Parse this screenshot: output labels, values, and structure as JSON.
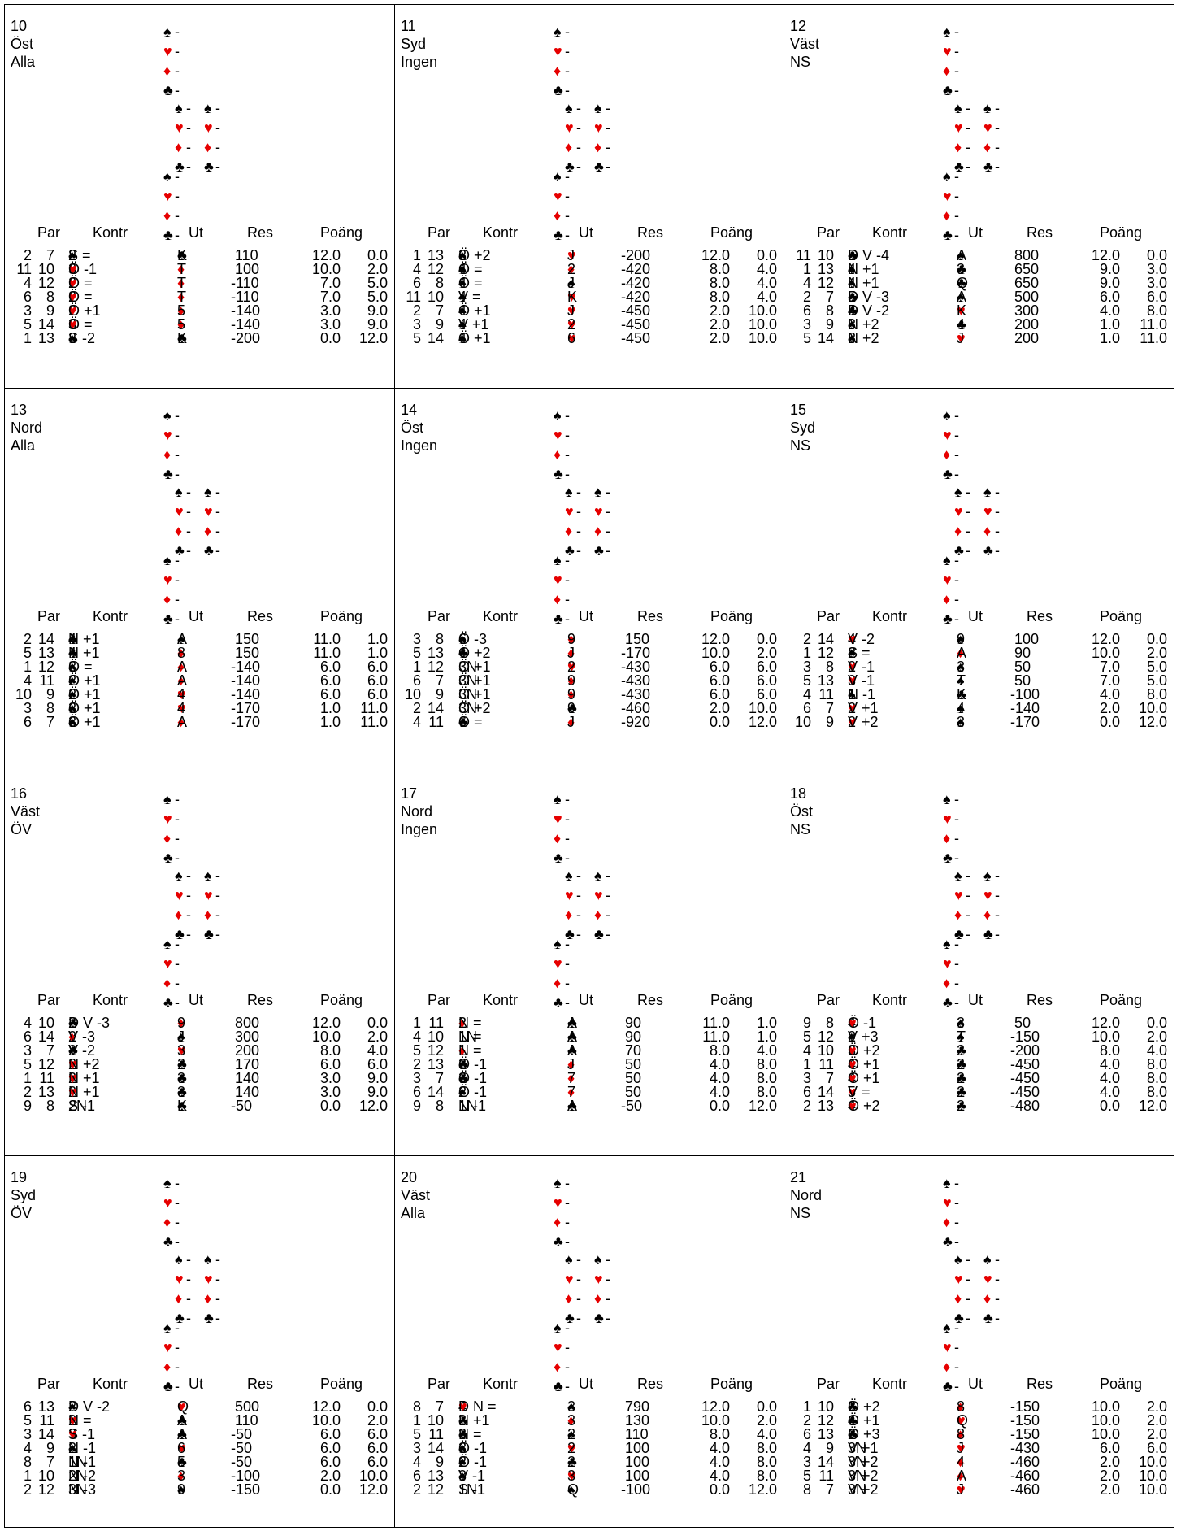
{
  "headers": {
    "par": "Par",
    "kontr": "Kontr",
    "ut": "Ut",
    "res": "Res",
    "poang": "Poäng"
  },
  "hand_values": {
    "north": [
      "-",
      "-",
      "-",
      "-"
    ],
    "west": [
      "-",
      "-",
      "-",
      "-"
    ],
    "east": [
      "-",
      "-",
      "-",
      "-"
    ],
    "south": [
      "-",
      "-",
      "-",
      "-"
    ]
  },
  "boards": [
    {
      "number": "10",
      "dealer": "Öst",
      "vuln": "Alla",
      "rows": [
        [
          "2",
          "7",
          "2",
          "♠",
          "S =",
          "♣",
          "K",
          "110",
          "12.0",
          "0.0"
        ],
        [
          "11",
          "10",
          "3",
          "♥",
          "Ö -1",
          "♦",
          "T",
          "100",
          "10.0",
          "2.0"
        ],
        [
          "4",
          "12",
          "2",
          "♥",
          "Ö =",
          "♦",
          "T",
          "-110",
          "7.0",
          "5.0"
        ],
        [
          "6",
          "8",
          "2",
          "♥",
          "Ö =",
          "♦",
          "T",
          "-110",
          "7.0",
          "5.0"
        ],
        [
          "3",
          "9",
          "2",
          "♥",
          "Ö +1",
          "♦",
          "5",
          "-140",
          "3.0",
          "9.0"
        ],
        [
          "5",
          "14",
          "3",
          "♥",
          "Ö =",
          "♦",
          "5",
          "-140",
          "3.0",
          "9.0"
        ],
        [
          "1",
          "13",
          "3",
          "♠",
          "S -2",
          "♣",
          "K",
          "-200",
          "0.0",
          "12.0"
        ]
      ]
    },
    {
      "number": "11",
      "dealer": "Syd",
      "vuln": "Ingen",
      "rows": [
        [
          "1",
          "13",
          "3",
          "♠",
          "Ö +2",
          "♥",
          "J",
          "-200",
          "12.0",
          "0.0"
        ],
        [
          "4",
          "12",
          "4",
          "♠",
          "Ö =",
          "♦",
          "2",
          "-420",
          "8.0",
          "4.0"
        ],
        [
          "6",
          "8",
          "4",
          "♠",
          "Ö =",
          "♠",
          "J",
          "-420",
          "8.0",
          "4.0"
        ],
        [
          "11",
          "10",
          "4",
          "♠",
          "V =",
          "♥",
          "K",
          "-420",
          "8.0",
          "4.0"
        ],
        [
          "2",
          "7",
          "4",
          "♠",
          "Ö +1",
          "♥",
          "J",
          "-450",
          "2.0",
          "10.0"
        ],
        [
          "3",
          "9",
          "4",
          "♠",
          "V +1",
          "♥",
          "2",
          "-450",
          "2.0",
          "10.0"
        ],
        [
          "5",
          "14",
          "4",
          "♠",
          "Ö +1",
          "♥",
          "6",
          "-450",
          "2.0",
          "10.0"
        ]
      ]
    },
    {
      "number": "12",
      "dealer": "Väst",
      "vuln": "NS",
      "rows": [
        [
          "11",
          "10",
          "5",
          "♣",
          "D V -4",
          "♠",
          "A",
          "800",
          "12.0",
          "0.0"
        ],
        [
          "1",
          "13",
          "4",
          "♠",
          "N +1",
          "♣",
          "3",
          "650",
          "9.0",
          "3.0"
        ],
        [
          "4",
          "12",
          "4",
          "♠",
          "N +1",
          "♣",
          "Q",
          "650",
          "9.0",
          "3.0"
        ],
        [
          "2",
          "7",
          "5",
          "♣",
          "D V -3",
          "♠",
          "A",
          "500",
          "6.0",
          "6.0"
        ],
        [
          "6",
          "8",
          "4",
          "♣",
          "D V -2",
          "♥",
          "K",
          "300",
          "4.0",
          "8.0"
        ],
        [
          "3",
          "9",
          "3",
          "♠",
          "N +2",
          "♣",
          "4",
          "200",
          "1.0",
          "11.0"
        ],
        [
          "5",
          "14",
          "3",
          "♠",
          "N +2",
          "♥",
          "J",
          "200",
          "1.0",
          "11.0"
        ]
      ]
    },
    {
      "number": "13",
      "dealer": "Nord",
      "vuln": "Alla",
      "rows": [
        [
          "2",
          "14",
          "4",
          "♣",
          "N +1",
          "♠",
          "A",
          "150",
          "11.0",
          "1.0"
        ],
        [
          "5",
          "13",
          "4",
          "♣",
          "N +1",
          "♦",
          "8",
          "150",
          "11.0",
          "1.0"
        ],
        [
          "1",
          "12",
          "3",
          "♠",
          "Ö =",
          "♦",
          "A",
          "-140",
          "6.0",
          "6.0"
        ],
        [
          "4",
          "11",
          "2",
          "♠",
          "Ö +1",
          "♦",
          "A",
          "-140",
          "6.0",
          "6.0"
        ],
        [
          "10",
          "9",
          "2",
          "♠",
          "Ö +1",
          "♥",
          "4",
          "-140",
          "6.0",
          "6.0"
        ],
        [
          "3",
          "8",
          "3",
          "♠",
          "Ö +1",
          "♥",
          "4",
          "-170",
          "1.0",
          "11.0"
        ],
        [
          "6",
          "7",
          "3",
          "♠",
          "Ö +1",
          "♦",
          "A",
          "-170",
          "1.0",
          "11.0"
        ]
      ]
    },
    {
      "number": "14",
      "dealer": "Öst",
      "vuln": "Ingen",
      "rows": [
        [
          "3",
          "8",
          "6",
          "♠",
          "Ö -3",
          "♦",
          "9",
          "150",
          "12.0",
          "0.0"
        ],
        [
          "5",
          "13",
          "4",
          "♣",
          "Ö +2",
          "♦",
          "J",
          "-170",
          "10.0",
          "2.0"
        ],
        [
          "1",
          "12",
          "3N",
          "",
          "Ö +1",
          "♥",
          "2",
          "-430",
          "6.0",
          "6.0"
        ],
        [
          "6",
          "7",
          "3N",
          "",
          "Ö +1",
          "♦",
          "9",
          "-430",
          "6.0",
          "6.0"
        ],
        [
          "10",
          "9",
          "3N",
          "",
          "Ö +1",
          "♦",
          "9",
          "-430",
          "6.0",
          "6.0"
        ],
        [
          "2",
          "14",
          "3N",
          "",
          "Ö +2",
          "♣",
          "9",
          "-460",
          "2.0",
          "10.0"
        ],
        [
          "4",
          "11",
          "6",
          "♣",
          "Ö =",
          "♦",
          "J",
          "-920",
          "0.0",
          "12.0"
        ]
      ]
    },
    {
      "number": "15",
      "dealer": "Syd",
      "vuln": "NS",
      "rows": [
        [
          "2",
          "14",
          "4",
          "♥",
          "V -2",
          "♠",
          "9",
          "100",
          "12.0",
          "0.0"
        ],
        [
          "1",
          "12",
          "2",
          "♠",
          "S =",
          "♦",
          "A",
          "90",
          "10.0",
          "2.0"
        ],
        [
          "3",
          "8",
          "2",
          "♥",
          "V -1",
          "♠",
          "3",
          "50",
          "7.0",
          "5.0"
        ],
        [
          "5",
          "13",
          "3",
          "♥",
          "V -1",
          "♠",
          "T",
          "50",
          "7.0",
          "5.0"
        ],
        [
          "4",
          "11",
          "1",
          "♠",
          "N -1",
          "♣",
          "K",
          "-100",
          "4.0",
          "8.0"
        ],
        [
          "6",
          "7",
          "2",
          "♥",
          "V +1",
          "♠",
          "4",
          "-140",
          "2.0",
          "10.0"
        ],
        [
          "10",
          "9",
          "2",
          "♥",
          "V +2",
          "♠",
          "3",
          "-170",
          "0.0",
          "12.0"
        ]
      ]
    },
    {
      "number": "16",
      "dealer": "Väst",
      "vuln": "ÖV",
      "rows": [
        [
          "4",
          "10",
          "2",
          "♣",
          "D V -3",
          "♦",
          "9",
          "800",
          "12.0",
          "0.0"
        ],
        [
          "6",
          "14",
          "2",
          "♦",
          "V -3",
          "♠",
          "J",
          "300",
          "10.0",
          "2.0"
        ],
        [
          "3",
          "7",
          "2",
          "♣",
          "V -2",
          "♥",
          "3",
          "200",
          "8.0",
          "4.0"
        ],
        [
          "5",
          "12",
          "2",
          "♥",
          "N +2",
          "♣",
          "2",
          "170",
          "6.0",
          "6.0"
        ],
        [
          "1",
          "11",
          "2",
          "♥",
          "N +1",
          "♣",
          "3",
          "140",
          "3.0",
          "9.0"
        ],
        [
          "2",
          "13",
          "2",
          "♥",
          "N +1",
          "♣",
          "3",
          "140",
          "3.0",
          "9.0"
        ],
        [
          "9",
          "8",
          "2N",
          "",
          "S -1",
          "♣",
          "K",
          "-50",
          "0.0",
          "12.0"
        ]
      ]
    },
    {
      "number": "17",
      "dealer": "Nord",
      "vuln": "Ingen",
      "rows": [
        [
          "1",
          "11",
          "2",
          "♦",
          "N =",
          "♣",
          "A",
          "90",
          "11.0",
          "1.0"
        ],
        [
          "4",
          "10",
          "1N",
          "",
          "N =",
          "♣",
          "A",
          "90",
          "11.0",
          "1.0"
        ],
        [
          "5",
          "12",
          "1",
          "♦",
          "N =",
          "♣",
          "A",
          "70",
          "8.0",
          "4.0"
        ],
        [
          "2",
          "13",
          "3",
          "♣",
          "Ö -1",
          "♦",
          "J",
          "50",
          "4.0",
          "8.0"
        ],
        [
          "3",
          "7",
          "3",
          "♣",
          "Ö -1",
          "♦",
          "7",
          "50",
          "4.0",
          "8.0"
        ],
        [
          "6",
          "14",
          "2",
          "♠",
          "Ö -1",
          "♦",
          "7",
          "50",
          "4.0",
          "8.0"
        ],
        [
          "9",
          "8",
          "1N",
          "",
          "N -1",
          "♣",
          "A",
          "-50",
          "0.0",
          "12.0"
        ]
      ]
    },
    {
      "number": "18",
      "dealer": "Öst",
      "vuln": "NS",
      "rows": [
        [
          "9",
          "8",
          "4",
          "♥",
          "Ö -1",
          "♠",
          "3",
          "50",
          "12.0",
          "0.0"
        ],
        [
          "5",
          "12",
          "2",
          "♠",
          "V +3",
          "♠",
          "T",
          "-150",
          "10.0",
          "2.0"
        ],
        [
          "4",
          "10",
          "3",
          "♥",
          "Ö +2",
          "♣",
          "2",
          "-200",
          "8.0",
          "4.0"
        ],
        [
          "1",
          "11",
          "4",
          "♥",
          "Ö +1",
          "♣",
          "2",
          "-450",
          "4.0",
          "8.0"
        ],
        [
          "3",
          "7",
          "4",
          "♥",
          "Ö +1",
          "♣",
          "2",
          "-450",
          "4.0",
          "8.0"
        ],
        [
          "6",
          "14",
          "5",
          "♥",
          "V =",
          "♣",
          "2",
          "-450",
          "4.0",
          "8.0"
        ],
        [
          "2",
          "13",
          "4",
          "♥",
          "Ö +2",
          "♣",
          "2",
          "-480",
          "0.0",
          "12.0"
        ]
      ]
    },
    {
      "number": "19",
      "dealer": "Syd",
      "vuln": "ÖV",
      "rows": [
        [
          "6",
          "13",
          "2",
          "♠",
          "D V -2",
          "♥",
          "Q",
          "500",
          "12.0",
          "0.0"
        ],
        [
          "5",
          "11",
          "2",
          "♥",
          "N =",
          "♣",
          "A",
          "110",
          "10.0",
          "2.0"
        ],
        [
          "3",
          "14",
          "3",
          "♥",
          "S -1",
          "♣",
          "A",
          "-50",
          "6.0",
          "6.0"
        ],
        [
          "4",
          "9",
          "2",
          "♠",
          "N -1",
          "♥",
          "6",
          "-50",
          "6.0",
          "6.0"
        ],
        [
          "8",
          "7",
          "1N",
          "",
          "N -1",
          "♣",
          "5",
          "-50",
          "6.0",
          "6.0"
        ],
        [
          "1",
          "10",
          "2N",
          "",
          "N -2",
          "♦",
          "3",
          "-100",
          "2.0",
          "10.0"
        ],
        [
          "2",
          "12",
          "3N",
          "",
          "N -3",
          "♠",
          "9",
          "-150",
          "0.0",
          "12.0"
        ]
      ]
    },
    {
      "number": "20",
      "dealer": "Väst",
      "vuln": "Alla",
      "rows": [
        [
          "8",
          "7",
          "4",
          "♥",
          "D N =",
          "♠",
          "3",
          "790",
          "12.0",
          "0.0"
        ],
        [
          "1",
          "10",
          "3",
          "♣",
          "N +1",
          "♦",
          "3",
          "130",
          "10.0",
          "2.0"
        ],
        [
          "5",
          "11",
          "3",
          "♣",
          "N =",
          "♠",
          "2",
          "110",
          "8.0",
          "4.0"
        ],
        [
          "3",
          "14",
          "3",
          "♠",
          "Ö -1",
          "♥",
          "2",
          "100",
          "4.0",
          "8.0"
        ],
        [
          "4",
          "9",
          "2",
          "♠",
          "Ö -1",
          "♣",
          "2",
          "100",
          "4.0",
          "8.0"
        ],
        [
          "6",
          "13",
          "3",
          "♠",
          "V -1",
          "♥",
          "3",
          "100",
          "4.0",
          "8.0"
        ],
        [
          "2",
          "12",
          "1N",
          "",
          "S -1",
          "♠",
          "Q",
          "-100",
          "0.0",
          "12.0"
        ]
      ]
    },
    {
      "number": "21",
      "dealer": "Nord",
      "vuln": "NS",
      "rows": [
        [
          "1",
          "10",
          "3",
          "♣",
          "Ö +2",
          "♦",
          "8",
          "-150",
          "10.0",
          "2.0"
        ],
        [
          "2",
          "12",
          "4",
          "♣",
          "Ö +1",
          "♥",
          "Q",
          "-150",
          "10.0",
          "2.0"
        ],
        [
          "6",
          "13",
          "2",
          "♣",
          "Ö +3",
          "♦",
          "8",
          "-150",
          "10.0",
          "2.0"
        ],
        [
          "4",
          "9",
          "3N",
          "",
          "V +1",
          "♥",
          "J",
          "-430",
          "6.0",
          "6.0"
        ],
        [
          "3",
          "14",
          "3N",
          "",
          "V +2",
          "♦",
          "4",
          "-460",
          "2.0",
          "10.0"
        ],
        [
          "5",
          "11",
          "3N",
          "",
          "V +2",
          "♦",
          "A",
          "-460",
          "2.0",
          "10.0"
        ],
        [
          "8",
          "7",
          "3N",
          "",
          "V +2",
          "♥",
          "J",
          "-460",
          "2.0",
          "10.0"
        ]
      ]
    }
  ]
}
